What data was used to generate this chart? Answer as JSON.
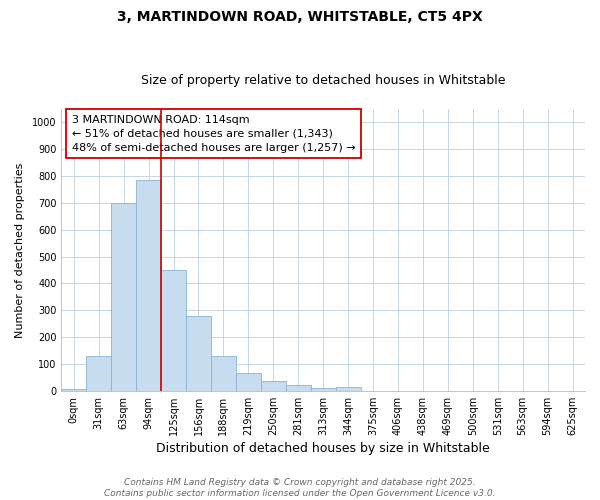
{
  "title1": "3, MARTINDOWN ROAD, WHITSTABLE, CT5 4PX",
  "title2": "Size of property relative to detached houses in Whitstable",
  "xlabel": "Distribution of detached houses by size in Whitstable",
  "ylabel": "Number of detached properties",
  "bar_labels": [
    "0sqm",
    "31sqm",
    "63sqm",
    "94sqm",
    "125sqm",
    "156sqm",
    "188sqm",
    "219sqm",
    "250sqm",
    "281sqm",
    "313sqm",
    "344sqm",
    "375sqm",
    "406sqm",
    "438sqm",
    "469sqm",
    "500sqm",
    "531sqm",
    "563sqm",
    "594sqm",
    "625sqm"
  ],
  "bar_values": [
    5,
    130,
    700,
    785,
    450,
    280,
    130,
    65,
    38,
    22,
    10,
    15,
    0,
    0,
    0,
    0,
    0,
    0,
    0,
    0,
    0
  ],
  "bar_color": "#c8dcef",
  "bar_edge_color": "#8ab4d4",
  "grid_color": "#c5d5e5",
  "background_color": "#ffffff",
  "plot_bg_color": "#ffffff",
  "vline_x": 4.0,
  "vline_color": "#cc0000",
  "annotation_text": "3 MARTINDOWN ROAD: 114sqm\n← 51% of detached houses are smaller (1,343)\n48% of semi-detached houses are larger (1,257) →",
  "annotation_box_color": "#ffffff",
  "annotation_box_edge": "#cc0000",
  "ylim": [
    0,
    1050
  ],
  "yticks": [
    0,
    100,
    200,
    300,
    400,
    500,
    600,
    700,
    800,
    900,
    1000
  ],
  "footer1": "Contains HM Land Registry data © Crown copyright and database right 2025.",
  "footer2": "Contains public sector information licensed under the Open Government Licence v3.0.",
  "title1_fontsize": 10,
  "title2_fontsize": 9,
  "xlabel_fontsize": 9,
  "ylabel_fontsize": 8,
  "tick_fontsize": 7,
  "annot_fontsize": 8,
  "footer_fontsize": 6.5
}
